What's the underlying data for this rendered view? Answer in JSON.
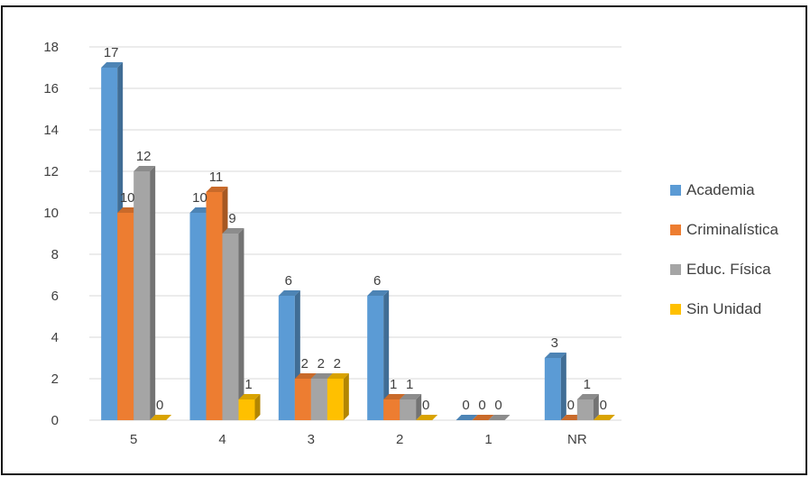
{
  "chart_data": {
    "type": "bar",
    "style": "3d-clustered-column",
    "categories": [
      "5",
      "4",
      "3",
      "2",
      "1",
      "NR"
    ],
    "series": [
      {
        "name": "Academia",
        "color": "#5B9BD5",
        "values": [
          17,
          10,
          6,
          6,
          0,
          3
        ]
      },
      {
        "name": "Criminalística",
        "color": "#ED7D31",
        "values": [
          10,
          11,
          2,
          1,
          0,
          0
        ]
      },
      {
        "name": "Educ. Física",
        "color": "#A5A5A5",
        "values": [
          12,
          9,
          2,
          1,
          0,
          1
        ]
      },
      {
        "name": "Sin Unidad",
        "color": "#FFC000",
        "values": [
          0,
          1,
          2,
          0,
          null,
          0
        ]
      }
    ],
    "y_ticks": [
      "0",
      "2",
      "4",
      "6",
      "8",
      "10",
      "12",
      "14",
      "16",
      "18"
    ],
    "ylim": [
      0,
      18
    ],
    "grid": true,
    "legend_position": "right",
    "title": "",
    "xlabel": "",
    "ylabel": ""
  }
}
